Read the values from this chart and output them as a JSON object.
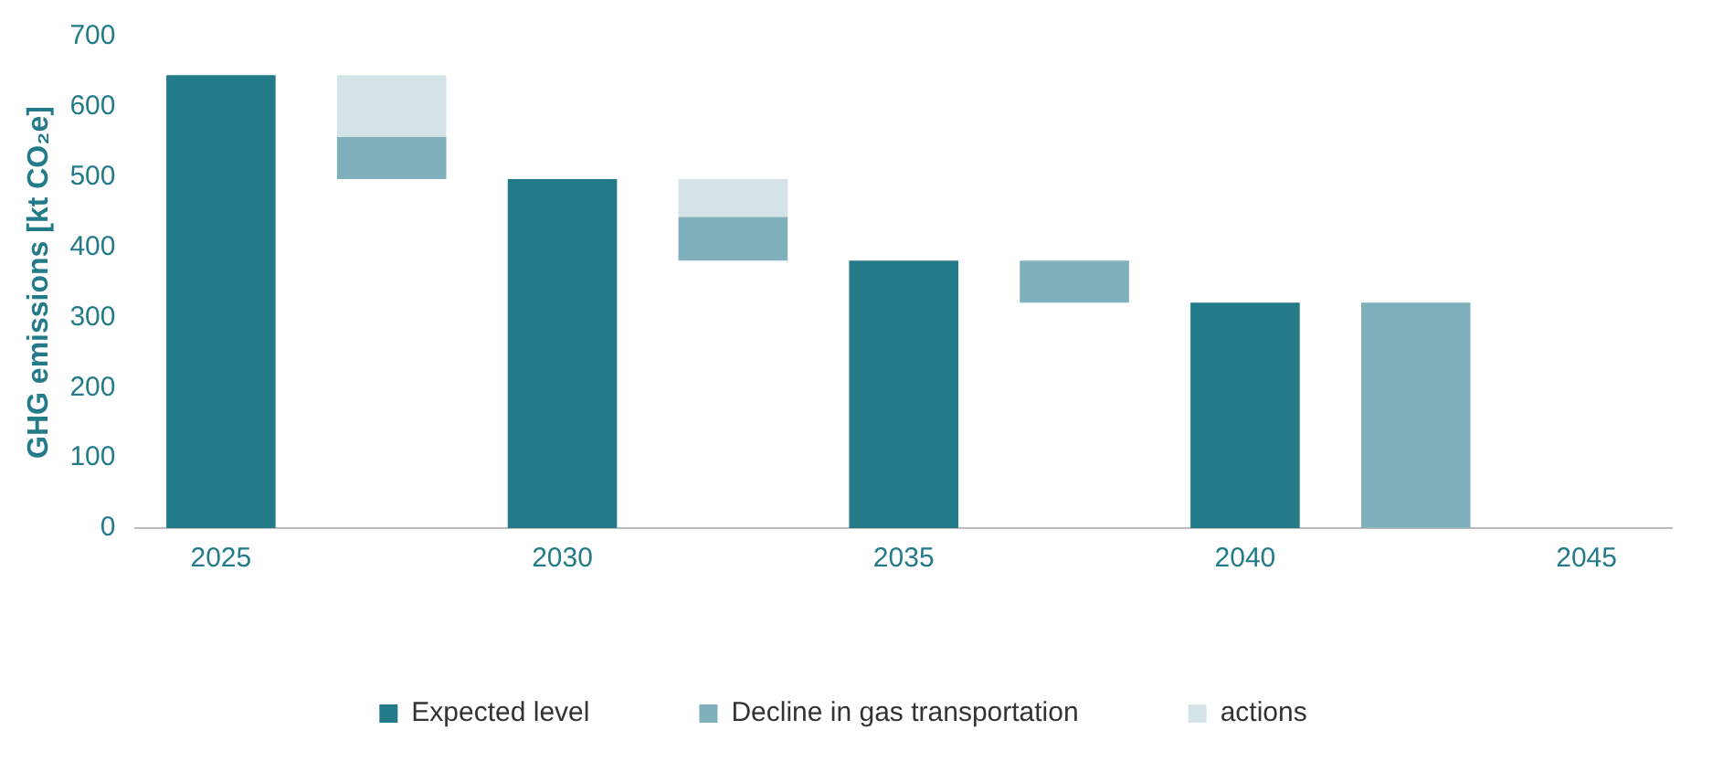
{
  "chart_data": {
    "type": "bar",
    "ylabel": "GHG emissions [kt CO₂e]",
    "categories": [
      "2025",
      null,
      "2030",
      null,
      "2035",
      null,
      "2040",
      null,
      "2045"
    ],
    "series": [
      {
        "name": "Expected level",
        "color": "#237b8a",
        "values": [
          645,
          null,
          497,
          null,
          381,
          null,
          321,
          null,
          null
        ]
      },
      {
        "name": "Decline in gas transportation",
        "color": "#7fb0bb",
        "base": [
          null,
          497,
          null,
          381,
          null,
          321,
          null,
          0,
          null
        ],
        "values": [
          null,
          60,
          null,
          62,
          null,
          60,
          null,
          321,
          null
        ]
      },
      {
        "name": "actions",
        "color": "#d3e3e8",
        "base": [
          null,
          557,
          null,
          443,
          null,
          null,
          null,
          null,
          null
        ],
        "values": [
          null,
          88,
          null,
          54,
          null,
          null,
          null,
          null,
          null
        ]
      }
    ],
    "ylim": [
      0,
      700
    ],
    "yticks": [
      0,
      100,
      200,
      300,
      400,
      500,
      600,
      700
    ],
    "grid": false,
    "legend": "bottom"
  }
}
